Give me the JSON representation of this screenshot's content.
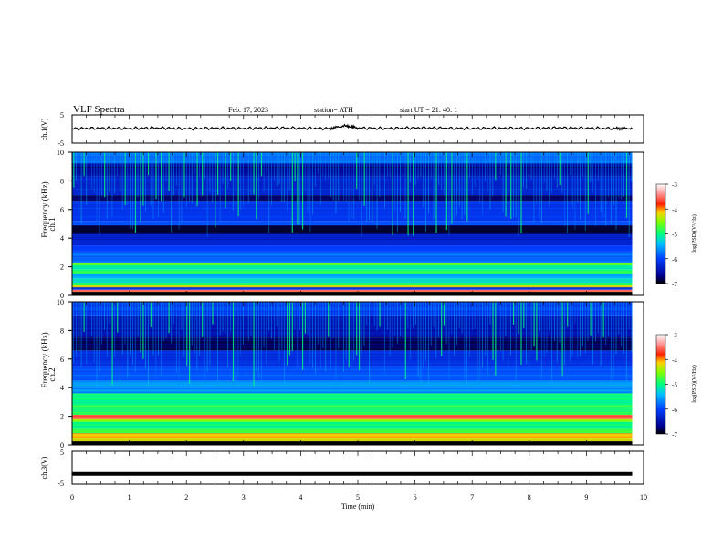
{
  "header": {
    "title": "VLF Spectra",
    "date": "Feb. 17, 2023",
    "station": "station= ATH",
    "start": "start UT = 21: 40: 1"
  },
  "colors": {
    "jet_low": "#000080",
    "jet_mid": "#00ff80",
    "jet_high": "#ffffff",
    "trace": "#000000"
  },
  "chart_data": [
    {
      "type": "line",
      "name": "ch1-waveform",
      "ylabel": "ch.1(V)",
      "ylim": [
        -5,
        5
      ],
      "yticks": [
        "5",
        "-5"
      ],
      "xlim": [
        0,
        10
      ],
      "description_level": "waveform near 0 V with small fluctuations",
      "x": [
        0,
        0.5,
        1,
        1.5,
        2,
        2.5,
        3,
        3.5,
        4,
        4.5,
        4.8,
        5,
        5.5,
        6,
        6.5,
        7,
        7.5,
        8,
        8.5,
        9,
        9.5,
        9.8
      ],
      "y": [
        0.1,
        0.3,
        0.2,
        0.4,
        0.1,
        0.3,
        0.2,
        0.4,
        0.3,
        0.2,
        1.2,
        0.3,
        0.2,
        0.4,
        0.3,
        0.2,
        0.3,
        0.2,
        0.4,
        0.3,
        0.2,
        0.2
      ]
    },
    {
      "type": "heatmap",
      "name": "ch1-spectrogram",
      "ylabel": "Frequency (kHz)",
      "channel_label": "ch.1",
      "ylim": [
        0,
        10
      ],
      "yticks": [
        "0",
        "2",
        "4",
        "6",
        "8",
        "10"
      ],
      "xlim": [
        0,
        9.8
      ],
      "colorbar": {
        "label": "log(PSD)(V²/Hz)",
        "ticks": [
          "-3",
          "-4",
          "-5",
          "-6",
          "-7"
        ],
        "range": [
          -7,
          -3
        ]
      },
      "bands_khz": [
        {
          "f0": 0.0,
          "f1": 0.25,
          "level": -7.0
        },
        {
          "f0": 0.25,
          "f1": 0.4,
          "level": -3.6
        },
        {
          "f0": 0.4,
          "f1": 0.55,
          "level": -6.2
        },
        {
          "f0": 0.55,
          "f1": 0.7,
          "level": -4.2
        },
        {
          "f0": 0.7,
          "f1": 0.9,
          "level": -4.9
        },
        {
          "f0": 0.9,
          "f1": 1.2,
          "level": -5.2
        },
        {
          "f0": 1.2,
          "f1": 1.5,
          "level": -5.5
        },
        {
          "f0": 1.5,
          "f1": 1.8,
          "level": -4.9
        },
        {
          "f0": 1.8,
          "f1": 2.1,
          "level": -5.1
        },
        {
          "f0": 2.1,
          "f1": 2.3,
          "level": -4.6
        },
        {
          "f0": 2.3,
          "f1": 3.0,
          "level": -5.8
        },
        {
          "f0": 3.0,
          "f1": 3.5,
          "level": -6.0
        },
        {
          "f0": 3.5,
          "f1": 4.3,
          "level": -6.3
        },
        {
          "f0": 4.3,
          "f1": 4.9,
          "level": -6.9
        },
        {
          "f0": 4.9,
          "f1": 5.2,
          "level": -5.9
        },
        {
          "f0": 5.2,
          "f1": 6.6,
          "level": -6.1
        },
        {
          "f0": 6.6,
          "f1": 7.0,
          "level": -6.8
        },
        {
          "f0": 7.0,
          "f1": 8.3,
          "level": -6.3
        },
        {
          "f0": 8.3,
          "f1": 9.2,
          "level": -6.6
        },
        {
          "f0": 9.2,
          "f1": 10.0,
          "level": -5.8
        }
      ]
    },
    {
      "type": "heatmap",
      "name": "ch2-spectrogram",
      "ylabel": "Frequency (kHz)",
      "channel_label": "ch.2",
      "ylim": [
        0,
        10
      ],
      "yticks": [
        "0",
        "2",
        "4",
        "6",
        "8",
        "10"
      ],
      "xlim": [
        0,
        9.8
      ],
      "colorbar": {
        "label": "log(PSD)(V²/Hz)",
        "ticks": [
          "-3",
          "-4",
          "-5",
          "-6",
          "-7"
        ],
        "range": [
          -7,
          -3
        ]
      },
      "bands_khz": [
        {
          "f0": 0.0,
          "f1": 0.25,
          "level": -7.0
        },
        {
          "f0": 0.25,
          "f1": 0.5,
          "level": -4.3
        },
        {
          "f0": 0.5,
          "f1": 0.8,
          "level": -4.1
        },
        {
          "f0": 0.8,
          "f1": 1.2,
          "level": -4.8
        },
        {
          "f0": 1.2,
          "f1": 1.6,
          "level": -5.0
        },
        {
          "f0": 1.6,
          "f1": 1.8,
          "level": -4.5
        },
        {
          "f0": 1.8,
          "f1": 2.1,
          "level": -3.6
        },
        {
          "f0": 2.1,
          "f1": 2.8,
          "level": -4.9
        },
        {
          "f0": 2.8,
          "f1": 3.6,
          "level": -5.0
        },
        {
          "f0": 3.6,
          "f1": 4.5,
          "level": -5.6
        },
        {
          "f0": 4.5,
          "f1": 5.5,
          "level": -5.9
        },
        {
          "f0": 5.5,
          "f1": 6.6,
          "level": -6.2
        },
        {
          "f0": 6.6,
          "f1": 7.5,
          "level": -6.8
        },
        {
          "f0": 7.5,
          "f1": 9.0,
          "level": -6.5
        },
        {
          "f0": 9.0,
          "f1": 10.0,
          "level": -6.1
        }
      ]
    },
    {
      "type": "line",
      "name": "ch3-waveform",
      "ylabel": "ch.3(V)",
      "ylim": [
        -5,
        5
      ],
      "yticks": [
        "5",
        "-5"
      ],
      "xlim": [
        0,
        10
      ],
      "x": [
        0,
        9.8
      ],
      "y": [
        -1.9,
        -1.9
      ]
    }
  ],
  "xaxis": {
    "label": "Time (min)",
    "ticks": [
      "0",
      "1",
      "2",
      "3",
      "4",
      "5",
      "6",
      "7",
      "8",
      "9",
      "10"
    ]
  }
}
